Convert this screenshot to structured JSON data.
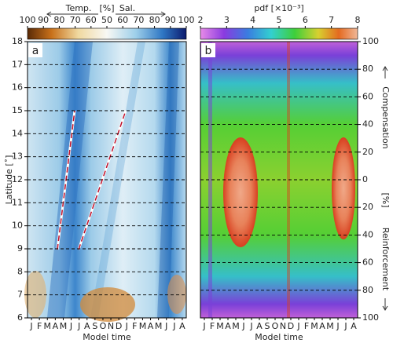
{
  "chart_data": [
    {
      "type": "heatmap",
      "panel_label": "a",
      "colorbar": {
        "left_label": "Temp.",
        "unit_label": "[%]",
        "right_label": "Sal.",
        "xlim": [
          0,
          100
        ],
        "xticks": [
          {
            "value": 0,
            "label": "100"
          },
          {
            "value": 10,
            "label": "90"
          },
          {
            "value": 20,
            "label": "80"
          },
          {
            "value": 30,
            "label": "70"
          },
          {
            "value": 40,
            "label": "60"
          },
          50,
          60,
          70,
          80,
          90,
          100
        ]
      },
      "y_label": "Latitude [˚]",
      "x_label": "Model time",
      "categories": [
        "J",
        "F",
        "M",
        "A",
        "M",
        "J",
        "J",
        "A",
        "S",
        "O",
        "N",
        "D",
        "J",
        "F",
        "M",
        "A",
        "M",
        "J",
        "J",
        "A"
      ],
      "ylim": [
        6,
        18
      ],
      "yticks": [
        6,
        7,
        8,
        9,
        10,
        11,
        12,
        13,
        14,
        15,
        16,
        17,
        18
      ],
      "grid": true
    },
    {
      "type": "heatmap",
      "panel_label": "b",
      "colorbar": {
        "title": "pdf [×10⁻³]",
        "xlim": [
          2,
          8
        ],
        "xticks": [
          2,
          3,
          4,
          5,
          6,
          7,
          8
        ]
      },
      "x_label": "Model time",
      "y2_upper_label": "Compensation",
      "y2_unit_label": "[%]",
      "y2_lower_label": "Reinforcement",
      "categories": [
        "J",
        "F",
        "M",
        "A",
        "M",
        "J",
        "J",
        "A",
        "S",
        "O",
        "N",
        "D",
        "J",
        "F",
        "M",
        "A",
        "M",
        "J",
        "J",
        "A"
      ],
      "y2lim": [
        -100,
        100
      ],
      "y2ticks": [
        100,
        80,
        60,
        40,
        20,
        0,
        {
          "value": -20,
          "label": "20"
        },
        {
          "value": -40,
          "label": "40"
        },
        {
          "value": -60,
          "label": "60"
        },
        {
          "value": -80,
          "label": "80"
        },
        {
          "value": -100,
          "label": "100"
        }
      ],
      "grid": true
    }
  ]
}
